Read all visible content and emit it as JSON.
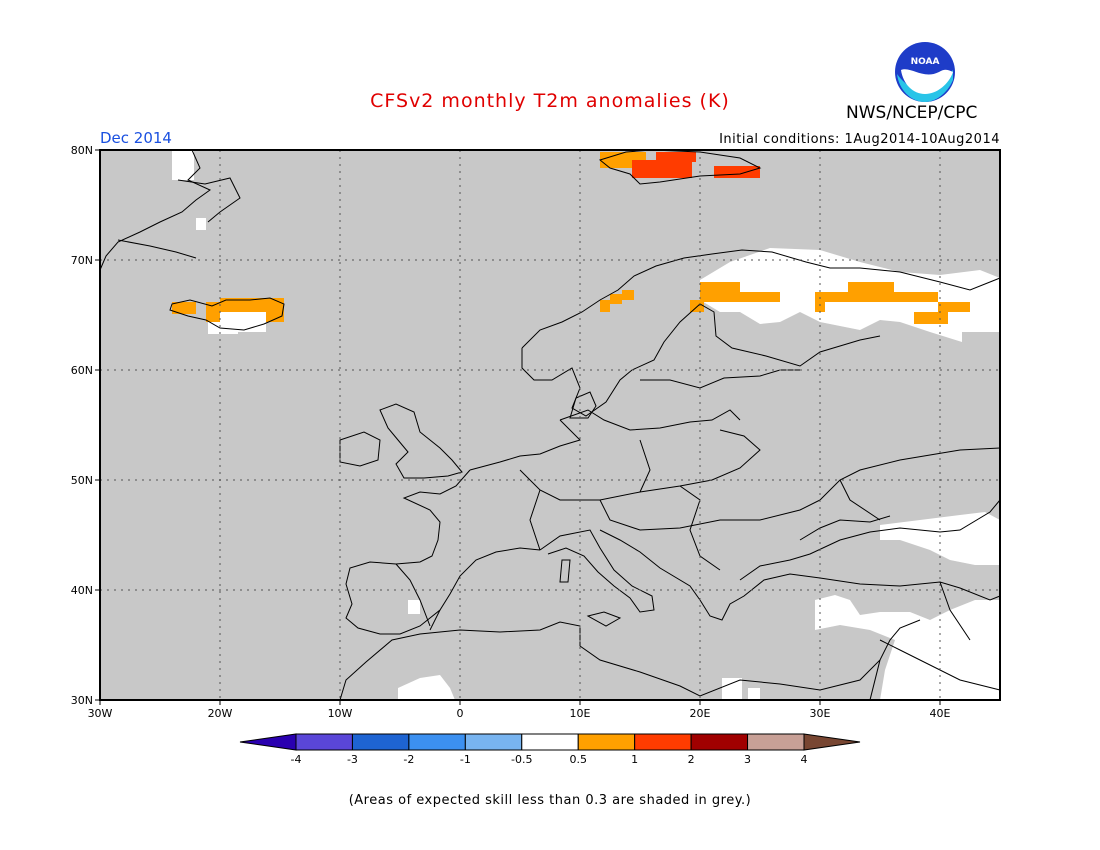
{
  "header": {
    "title": "CFSv2 monthly T2m anomalies (K)",
    "agency": "NWS/NCEP/CPC",
    "logo_text": "NOAA",
    "month": "Dec 2014",
    "initial_conditions": "Initial conditions: 1Aug2014-10Aug2014"
  },
  "map": {
    "lon_range": [
      -30,
      45
    ],
    "lat_range": [
      30,
      80
    ],
    "lat_ticks": [
      "30N",
      "40N",
      "50N",
      "60N",
      "70N",
      "80N"
    ],
    "lon_ticks": [
      "30W",
      "20W",
      "10W",
      "0",
      "10E",
      "20E",
      "30E",
      "40E"
    ],
    "colors": {
      "low_skill_grey": "#c8c8c8",
      "neutral": "#ffffff",
      "coast": "#000000"
    }
  },
  "colorbar": {
    "labels": [
      "-4",
      "-3",
      "-2",
      "-1",
      "-0.5",
      "0.5",
      "1",
      "2",
      "3",
      "4"
    ],
    "colors": [
      "#2a00b0",
      "#5a46d8",
      "#1e64d2",
      "#3c90f0",
      "#78b4f0",
      "#ffffff",
      "#ffa000",
      "#ff3c00",
      "#a00000",
      "#c8a096",
      "#784632"
    ]
  },
  "footnote": "(Areas of expected skill less than 0.3 are shaded in grey.)"
}
